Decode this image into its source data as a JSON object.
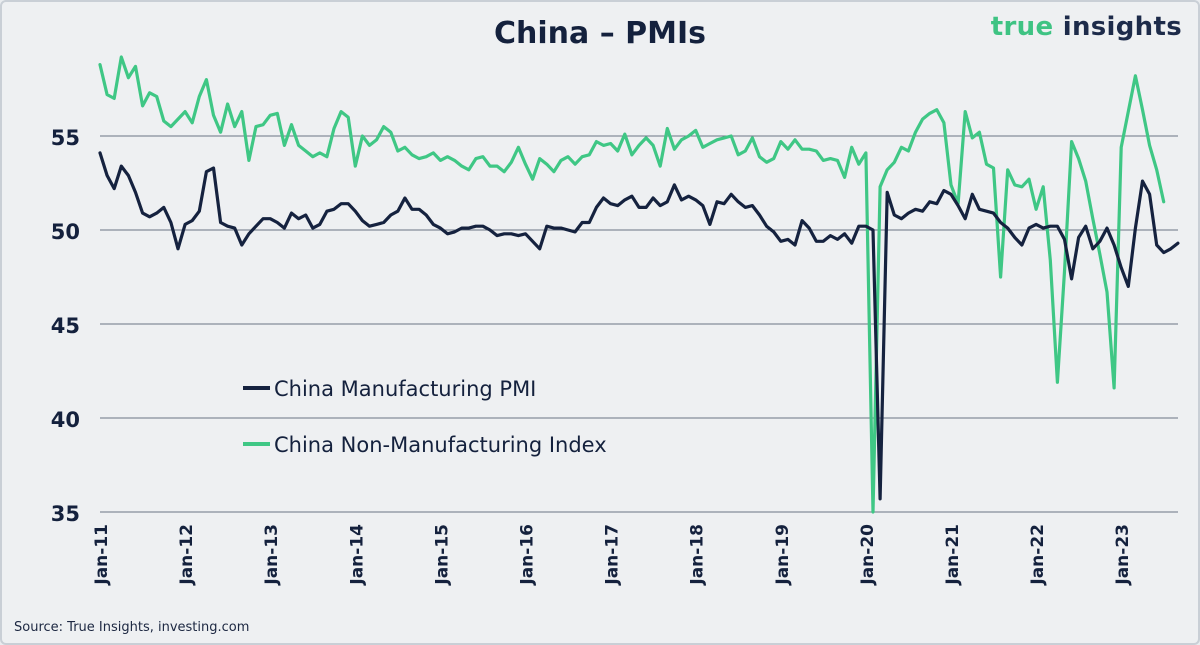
{
  "title": "China – PMIs",
  "brand": {
    "part1": "true ",
    "part2": "insights"
  },
  "source": "Source: True Insights, investing.com",
  "colors": {
    "manufacturing": "#15223f",
    "non_manufacturing": "#3fc785",
    "grid": "#6b7384",
    "text": "#14213d"
  },
  "chart_data": {
    "type": "line",
    "title": "China – PMIs",
    "xlabel": "",
    "ylabel": "",
    "ylim": [
      35,
      60
    ],
    "yticks": [
      35,
      40,
      45,
      50,
      55
    ],
    "grid": true,
    "legend_position": "lower-left",
    "x_start": "Jan-11",
    "x_end": "Aug-23",
    "x_tick_labels": [
      "Jan-11",
      "Jan-12",
      "Jan-13",
      "Jan-14",
      "Jan-15",
      "Jan-16",
      "Jan-17",
      "Jan-18",
      "Jan-19",
      "Jan-20",
      "Jan-21",
      "Jan-22",
      "Jan-23"
    ],
    "series": [
      {
        "name": "China Manufacturing PMI",
        "values": [
          54.1,
          52.9,
          52.2,
          53.4,
          52.9,
          52.0,
          50.9,
          50.7,
          50.9,
          51.2,
          50.4,
          49.0,
          50.3,
          50.5,
          51.0,
          53.1,
          53.3,
          50.4,
          50.2,
          50.1,
          49.2,
          49.8,
          50.2,
          50.6,
          50.6,
          50.4,
          50.1,
          50.9,
          50.6,
          50.8,
          50.1,
          50.3,
          51.0,
          51.1,
          51.4,
          51.4,
          51.0,
          50.5,
          50.2,
          50.3,
          50.4,
          50.8,
          51.0,
          51.7,
          51.1,
          51.1,
          50.8,
          50.3,
          50.1,
          49.8,
          49.9,
          50.1,
          50.1,
          50.2,
          50.2,
          50.0,
          49.7,
          49.8,
          49.8,
          49.7,
          49.8,
          49.4,
          49.0,
          50.2,
          50.1,
          50.1,
          50.0,
          49.9,
          50.4,
          50.4,
          51.2,
          51.7,
          51.4,
          51.3,
          51.6,
          51.8,
          51.2,
          51.2,
          51.7,
          51.3,
          51.5,
          52.4,
          51.6,
          51.8,
          51.6,
          51.3,
          50.3,
          51.5,
          51.4,
          51.9,
          51.5,
          51.2,
          51.3,
          50.8,
          50.2,
          49.9,
          49.4,
          49.5,
          49.2,
          50.5,
          50.1,
          49.4,
          49.4,
          49.7,
          49.5,
          49.8,
          49.3,
          50.2,
          50.2,
          50.0,
          35.7,
          52.0,
          50.8,
          50.6,
          50.9,
          51.1,
          51.0,
          51.5,
          51.4,
          52.1,
          51.9,
          51.3,
          50.6,
          51.9,
          51.1,
          51.0,
          50.9,
          50.4,
          50.1,
          49.6,
          49.2,
          50.1,
          50.3,
          50.1,
          50.2,
          50.2,
          49.5,
          47.4,
          49.6,
          50.2,
          49.0,
          49.4,
          50.1,
          49.2,
          48.0,
          47.0,
          50.1,
          52.6,
          51.9,
          49.2,
          48.8,
          49.0,
          49.3
        ]
      },
      {
        "name": "China Non-Manufacturing Index",
        "values": [
          58.8,
          57.2,
          57.0,
          59.2,
          58.1,
          58.7,
          56.6,
          57.3,
          57.1,
          55.8,
          55.5,
          55.9,
          56.3,
          55.7,
          57.1,
          58.0,
          56.1,
          55.2,
          56.7,
          55.5,
          56.3,
          53.7,
          55.5,
          55.6,
          56.1,
          56.2,
          54.5,
          55.6,
          54.5,
          54.2,
          53.9,
          54.1,
          53.9,
          55.4,
          56.3,
          56.0,
          53.4,
          55.0,
          54.5,
          54.8,
          55.5,
          55.2,
          54.2,
          54.4,
          54.0,
          53.8,
          53.9,
          54.1,
          53.7,
          53.9,
          53.7,
          53.4,
          53.2,
          53.8,
          53.9,
          53.4,
          53.4,
          53.1,
          53.6,
          54.4,
          53.5,
          52.7,
          53.8,
          53.5,
          53.1,
          53.7,
          53.9,
          53.5,
          53.9,
          54.0,
          54.7,
          54.5,
          54.6,
          54.2,
          55.1,
          54.0,
          54.5,
          54.9,
          54.5,
          53.4,
          55.4,
          54.3,
          54.8,
          55.0,
          55.3,
          54.4,
          54.6,
          54.8,
          54.9,
          55.0,
          54.0,
          54.2,
          54.9,
          53.9,
          53.6,
          53.8,
          54.7,
          54.3,
          54.8,
          54.3,
          54.3,
          54.2,
          53.7,
          53.8,
          53.7,
          52.8,
          54.4,
          53.5,
          54.1,
          35.0,
          52.3,
          53.2,
          53.6,
          54.4,
          54.2,
          55.2,
          55.9,
          56.2,
          56.4,
          55.7,
          52.4,
          51.4,
          56.3,
          54.9,
          55.2,
          53.5,
          53.3,
          47.5,
          53.2,
          52.4,
          52.3,
          52.7,
          51.1,
          52.3,
          48.4,
          41.9,
          47.8,
          54.7,
          53.8,
          52.6,
          50.6,
          48.7,
          46.7,
          41.6,
          54.4,
          56.3,
          58.2,
          56.4,
          54.5,
          53.2,
          51.5
        ]
      }
    ]
  }
}
